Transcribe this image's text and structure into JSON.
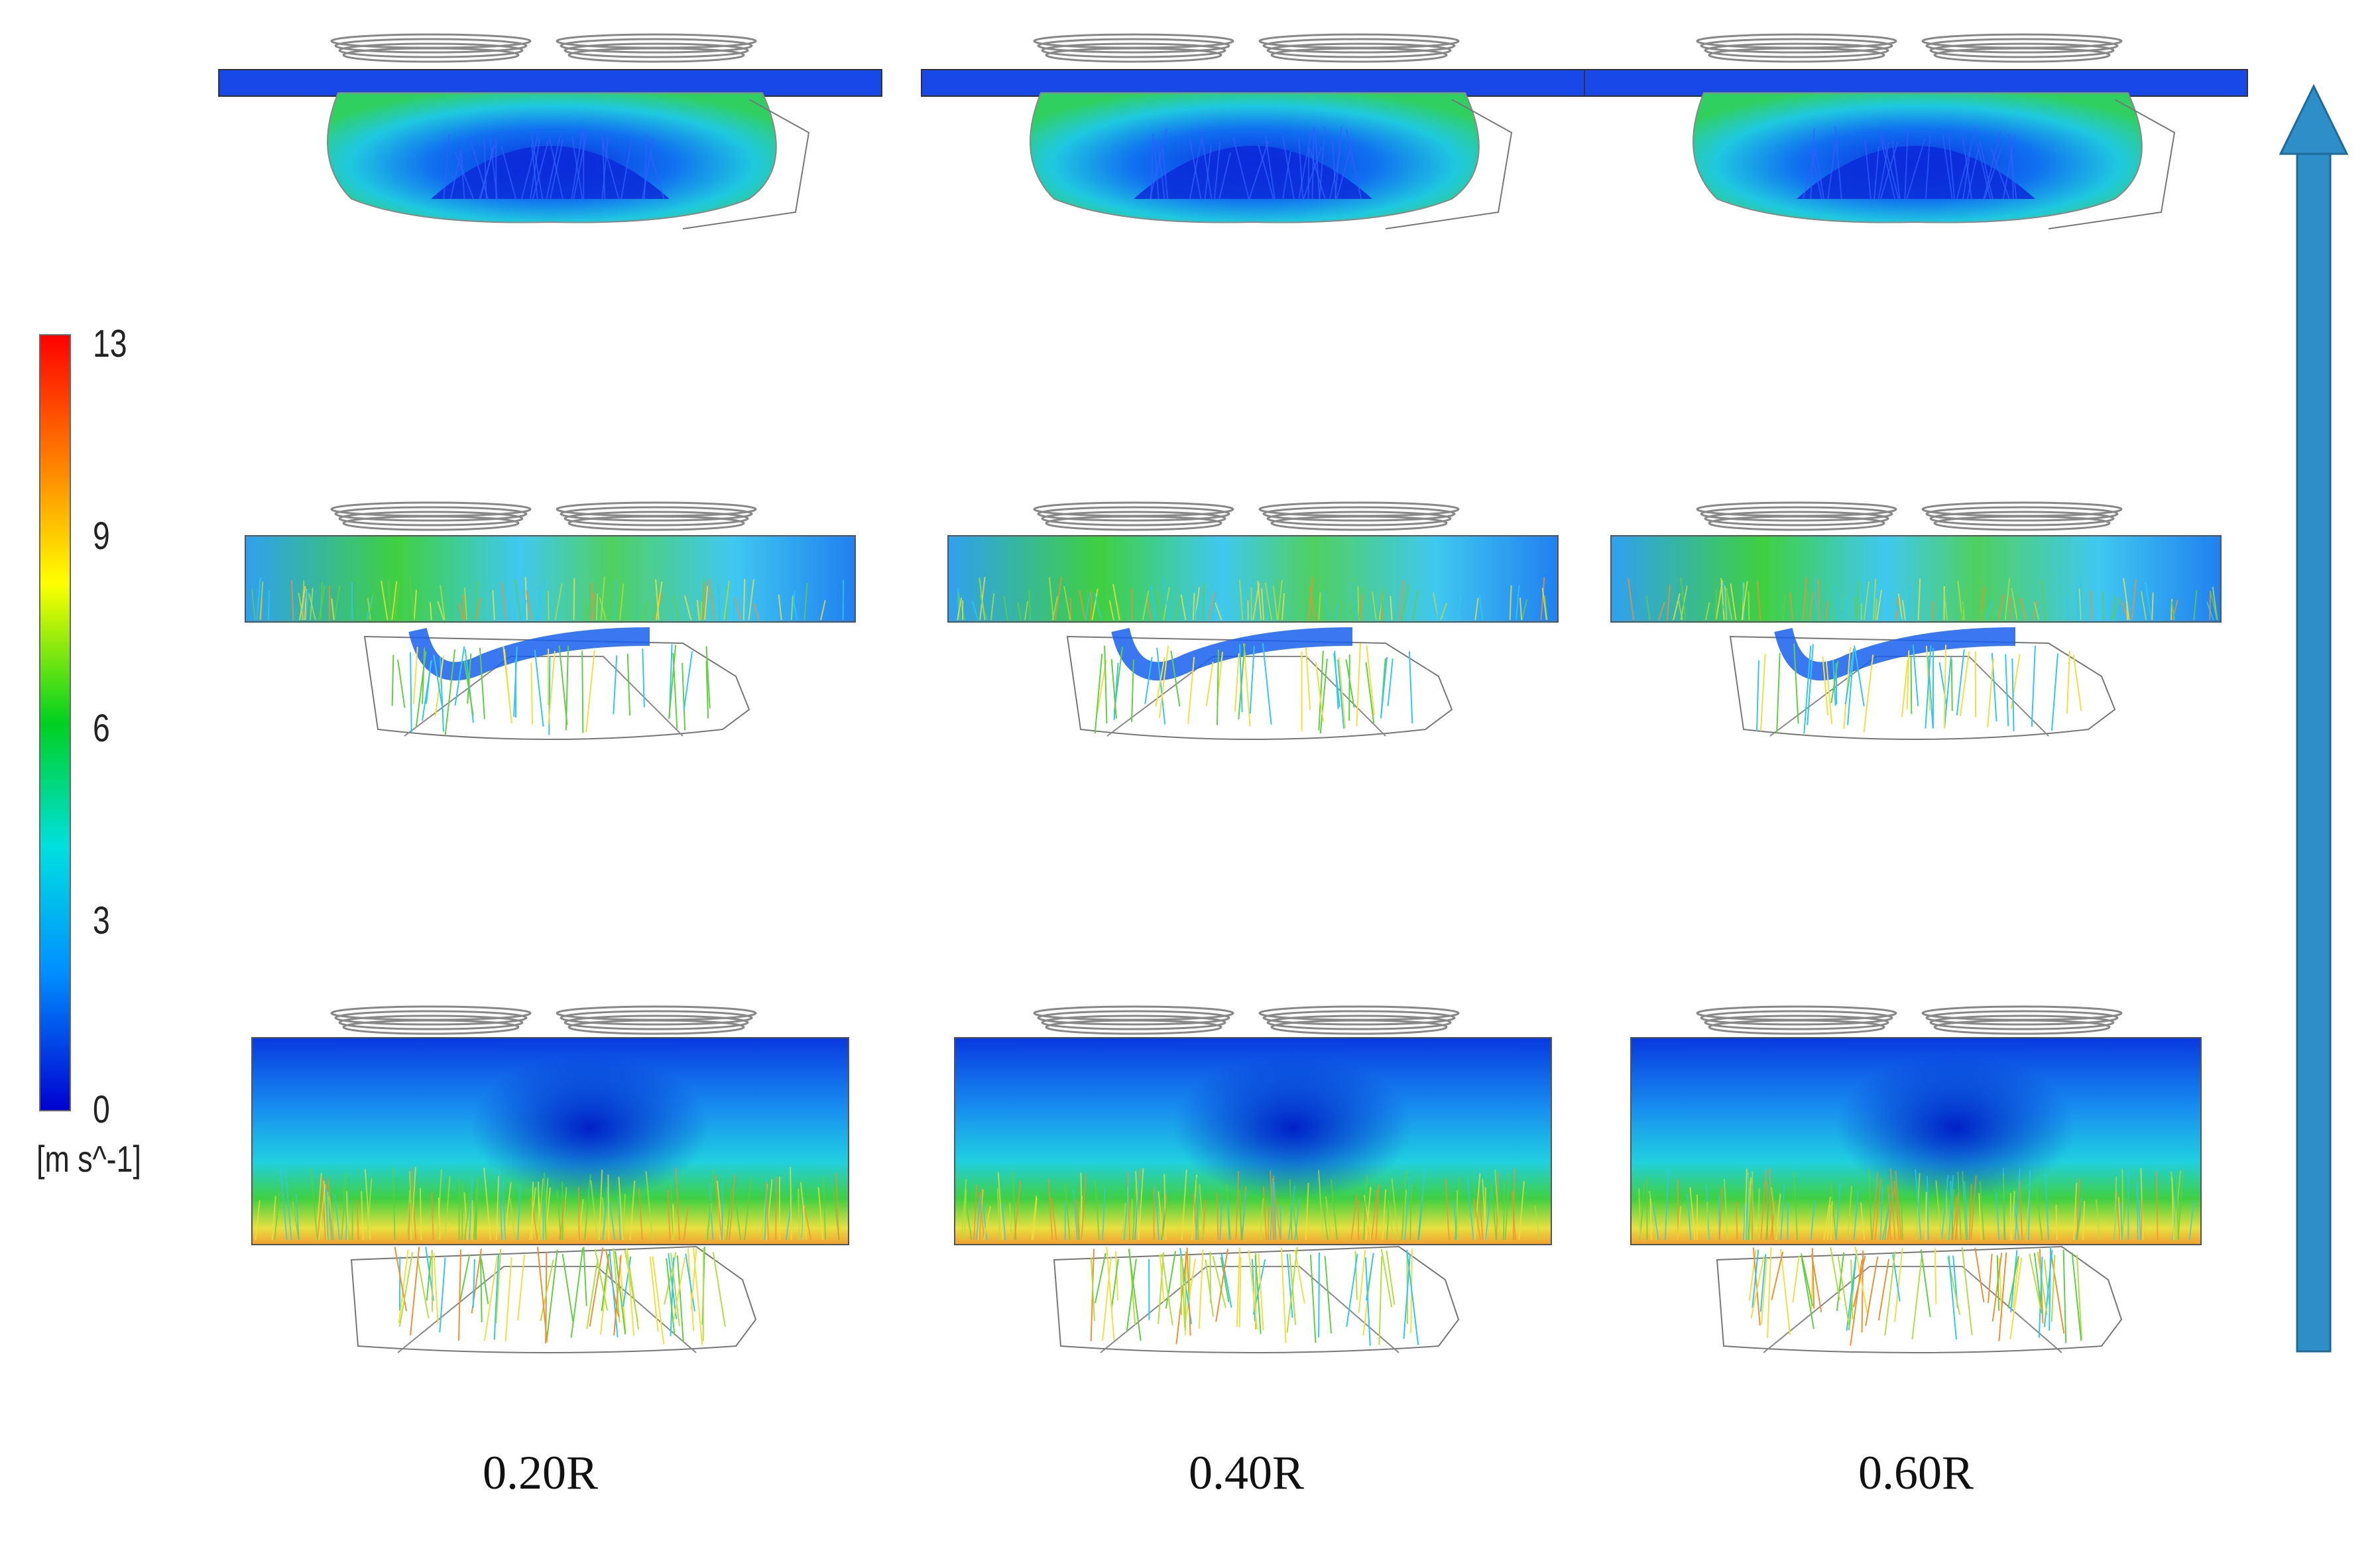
{
  "colorbar": {
    "ticks": [
      "13",
      "9",
      "6",
      "3",
      "0"
    ],
    "unit": "[m s^-1]",
    "colors": [
      "#ff0000",
      "#ffa500",
      "#ffff00",
      "#00d000",
      "#00e0e0",
      "#0080ff",
      "#0000d0"
    ]
  },
  "columns": [
    "0.20R",
    "0.40R",
    "0.60R"
  ],
  "rows": [
    "top",
    "middle",
    "bottom"
  ],
  "arrow": {
    "color": "#2e8fc8",
    "direction": "up"
  },
  "colors": {
    "blue": "#1040e0",
    "cyan": "#20c8f0",
    "green": "#30d040",
    "yellow": "#e8e040",
    "orange": "#f08030"
  }
}
